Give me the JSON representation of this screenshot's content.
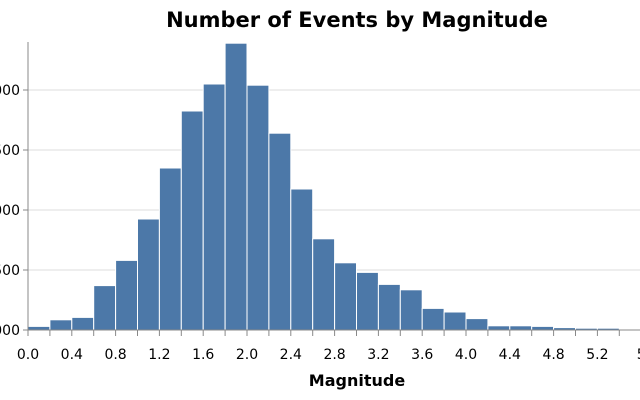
{
  "chart_data": {
    "type": "bar",
    "title": "Number of Events by Magnitude",
    "xlabel": "Magnitude",
    "ylabel": "",
    "bin_width": 0.2,
    "x_ticks": [
      "0.0",
      "0.4",
      "0.8",
      "1.2",
      "1.6",
      "2.0",
      "2.4",
      "2.8",
      "3.2",
      "3.6",
      "4.0",
      "4.4",
      "4.8",
      "5.2",
      "5"
    ],
    "y_ticks": [
      "000",
      "500",
      "000",
      "500",
      "000"
    ],
    "y_tick_values": [
      0,
      500,
      1000,
      1500,
      2000
    ],
    "ylim": [
      0,
      2400
    ],
    "grid": true,
    "bins": [
      {
        "x": 0.0,
        "value": 30
      },
      {
        "x": 0.2,
        "value": 85
      },
      {
        "x": 0.4,
        "value": 105
      },
      {
        "x": 0.6,
        "value": 370
      },
      {
        "x": 0.8,
        "value": 580
      },
      {
        "x": 1.0,
        "value": 925
      },
      {
        "x": 1.2,
        "value": 1350
      },
      {
        "x": 1.4,
        "value": 1825
      },
      {
        "x": 1.6,
        "value": 2050
      },
      {
        "x": 1.8,
        "value": 2390
      },
      {
        "x": 2.0,
        "value": 2040
      },
      {
        "x": 2.2,
        "value": 1640
      },
      {
        "x": 2.4,
        "value": 1175
      },
      {
        "x": 2.6,
        "value": 760
      },
      {
        "x": 2.8,
        "value": 560
      },
      {
        "x": 3.0,
        "value": 480
      },
      {
        "x": 3.2,
        "value": 380
      },
      {
        "x": 3.4,
        "value": 335
      },
      {
        "x": 3.6,
        "value": 180
      },
      {
        "x": 3.8,
        "value": 150
      },
      {
        "x": 4.0,
        "value": 95
      },
      {
        "x": 4.2,
        "value": 35
      },
      {
        "x": 4.4,
        "value": 35
      },
      {
        "x": 4.6,
        "value": 30
      },
      {
        "x": 4.8,
        "value": 20
      },
      {
        "x": 5.0,
        "value": 15
      },
      {
        "x": 5.2,
        "value": 15
      }
    ]
  }
}
